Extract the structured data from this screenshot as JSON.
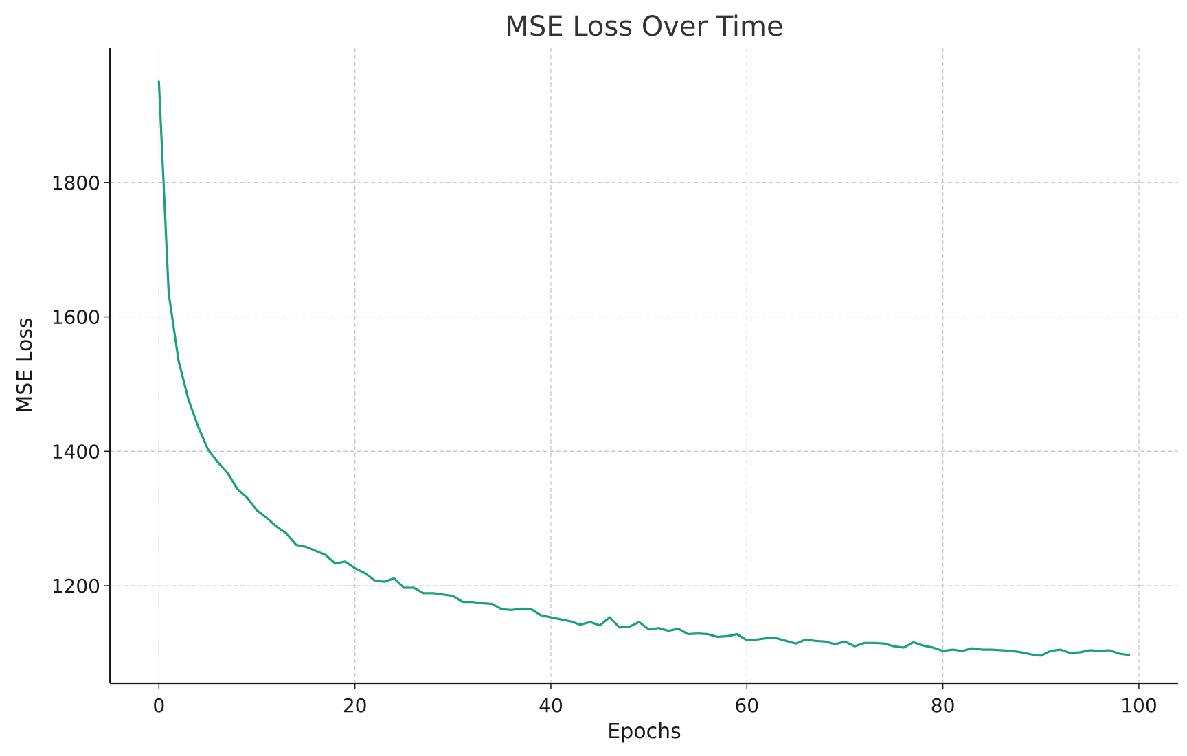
{
  "chart_data": {
    "type": "line",
    "title": "MSE Loss Over Time",
    "xlabel": "Epochs",
    "ylabel": "MSE Loss",
    "xlim": [
      -5,
      104
    ],
    "ylim": [
      1055,
      2000
    ],
    "xticks": [
      0,
      20,
      40,
      60,
      80,
      100
    ],
    "yticks": [
      1200,
      1400,
      1600,
      1800
    ],
    "grid": true,
    "line_color": "#1aa07d",
    "series": [
      {
        "x": [
          0,
          1,
          2,
          3,
          4,
          5,
          6,
          7,
          8,
          9,
          10,
          11,
          12,
          13,
          14,
          15,
          16,
          17,
          18,
          19,
          20,
          21,
          22,
          23,
          24,
          25,
          26,
          27,
          28,
          29,
          30,
          31,
          32,
          33,
          34,
          35,
          36,
          37,
          38,
          39,
          40,
          41,
          42,
          43,
          44,
          45,
          46,
          47,
          48,
          49,
          50,
          51,
          52,
          53,
          54,
          55,
          56,
          57,
          58,
          59,
          60,
          61,
          62,
          63,
          64,
          65,
          66,
          67,
          68,
          69,
          70,
          71,
          72,
          73,
          74,
          75,
          76,
          77,
          78,
          79,
          80,
          81,
          82,
          83,
          84,
          85,
          86,
          87,
          88,
          89,
          90,
          91,
          92,
          93,
          94,
          95,
          96,
          97,
          98,
          99
        ],
        "values": [
          1950,
          1635,
          1535,
          1478,
          1437,
          1403,
          1384,
          1368,
          1344,
          1331,
          1312,
          1301,
          1288,
          1278,
          1261,
          1258,
          1252,
          1246,
          1233,
          1236,
          1226,
          1219,
          1208,
          1206,
          1211,
          1197,
          1197,
          1189,
          1189,
          1187,
          1185,
          1176,
          1176,
          1174,
          1173,
          1165,
          1164,
          1166,
          1165,
          1156,
          1153,
          1150,
          1147,
          1142,
          1146,
          1141,
          1153,
          1138,
          1139,
          1146,
          1135,
          1137,
          1133,
          1136,
          1128,
          1129,
          1128,
          1124,
          1125,
          1128,
          1119,
          1120,
          1122,
          1122,
          1118,
          1114,
          1120,
          1118,
          1117,
          1113,
          1117,
          1110,
          1115,
          1115,
          1114,
          1110,
          1108,
          1116,
          1111,
          1108,
          1103,
          1105,
          1103,
          1107,
          1105,
          1105,
          1104,
          1103,
          1101,
          1098,
          1096,
          1103,
          1105,
          1100,
          1101,
          1104,
          1103,
          1104,
          1099,
          1097
        ]
      }
    ]
  }
}
